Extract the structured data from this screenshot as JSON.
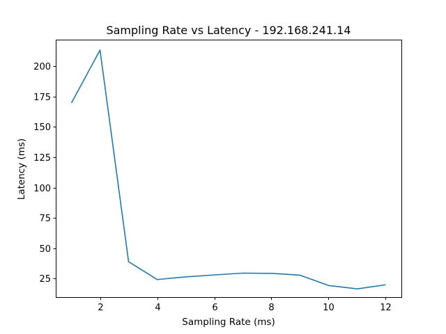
{
  "chart_data": {
    "type": "line",
    "title": "Sampling Rate vs Latency - 192.168.241.14",
    "xlabel": "Sampling Rate (ms)",
    "ylabel": "Latency (ms)",
    "xlim": [
      0.45,
      12.55
    ],
    "ylim": [
      9.6,
      222.0
    ],
    "xticks": [
      2,
      4,
      6,
      8,
      10,
      12
    ],
    "yticks": [
      25,
      50,
      75,
      100,
      125,
      150,
      175,
      200
    ],
    "grid": false,
    "line_color": "#1f77b4",
    "series": [
      {
        "x": [
          1,
          2,
          3,
          4,
          5,
          6,
          7,
          8,
          9,
          10,
          11,
          12
        ],
        "values": [
          169.8,
          213.4,
          38.8,
          24.1,
          26.3,
          27.9,
          29.4,
          29.2,
          27.7,
          19.2,
          16.4,
          19.8
        ]
      }
    ]
  }
}
